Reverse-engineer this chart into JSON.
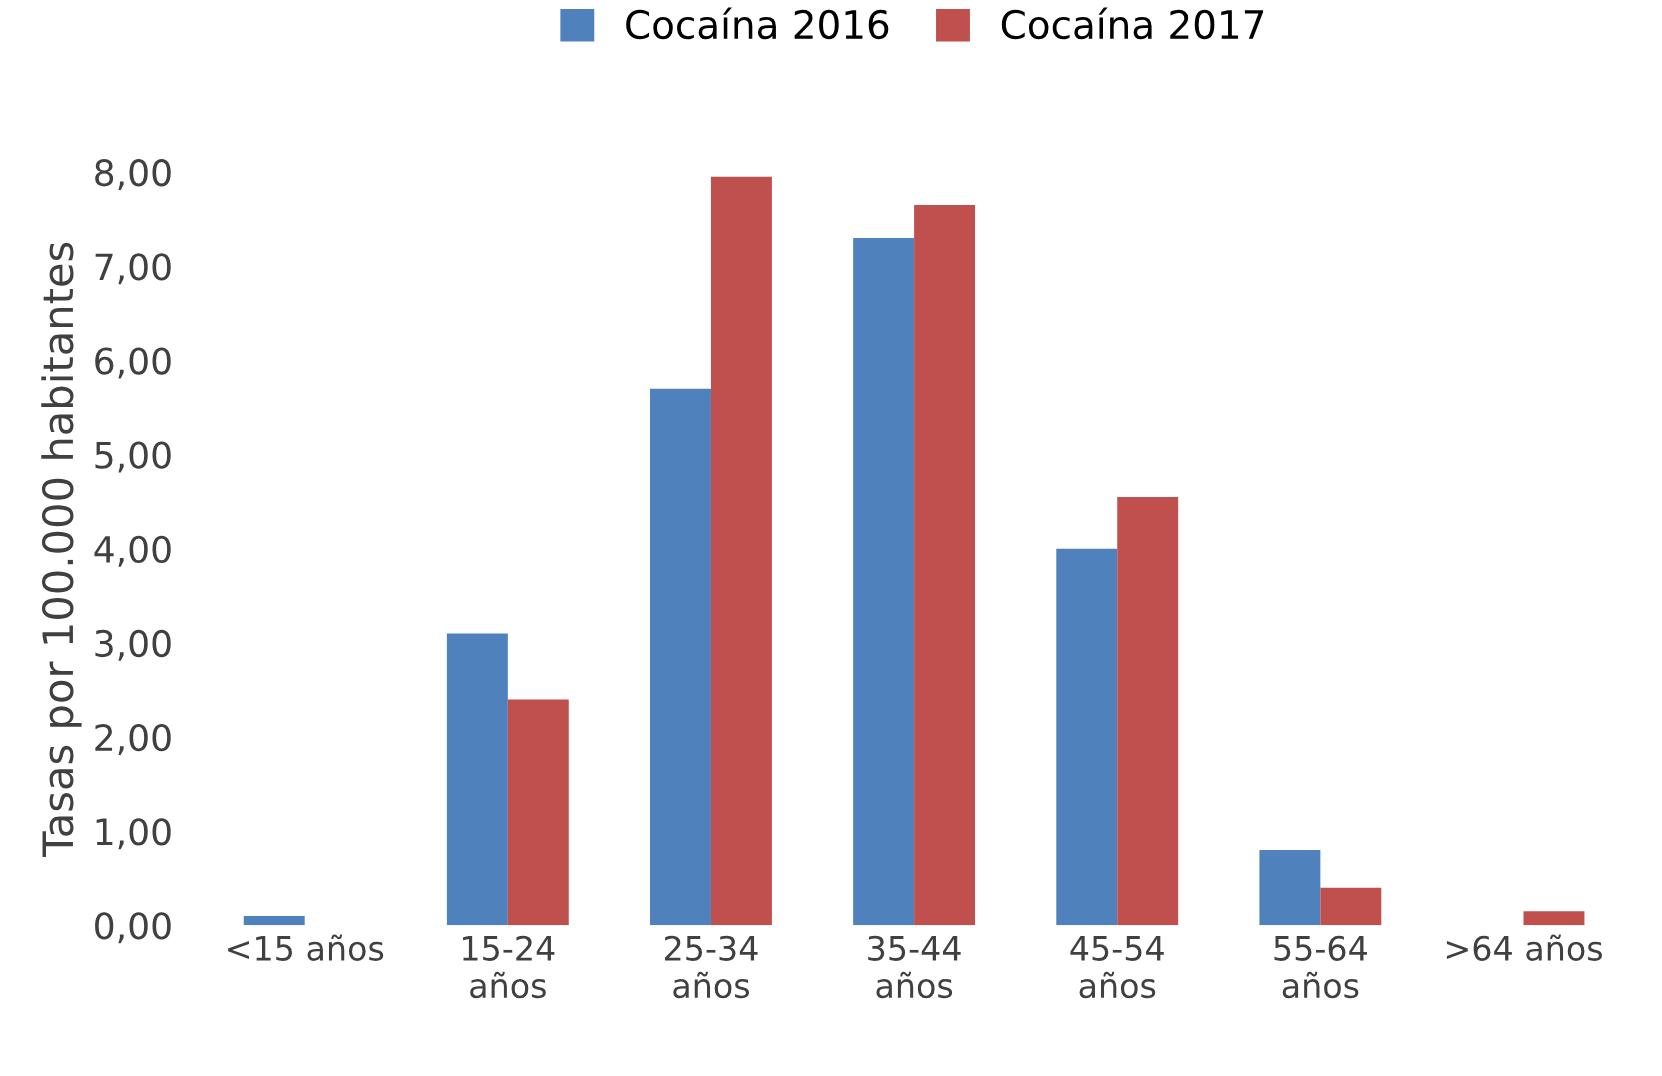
{
  "chart_data": {
    "type": "bar",
    "ylabel": "Tasas por 100.000 habitantes",
    "categories": [
      "<15 años",
      "15-24\naños",
      "25-34\naños",
      "35-44\naños",
      "45-54\naños",
      "55-64\naños",
      ">64 años"
    ],
    "series": [
      {
        "name": "Cocaína 2016",
        "color": "#4f81bd",
        "values": [
          0.1,
          3.1,
          5.7,
          7.3,
          4.0,
          0.8,
          0.0
        ]
      },
      {
        "name": "Cocaína 2017",
        "color": "#c0504d",
        "values": [
          0.0,
          2.4,
          7.95,
          7.65,
          4.55,
          0.4,
          0.15
        ]
      }
    ],
    "ylim": [
      0,
      8
    ],
    "yticks": [
      {
        "value": 0,
        "label": "0,00"
      },
      {
        "value": 1,
        "label": "1,00"
      },
      {
        "value": 2,
        "label": "2,00"
      },
      {
        "value": 3,
        "label": "3,00"
      },
      {
        "value": 4,
        "label": "4,00"
      },
      {
        "value": 5,
        "label": "5,00"
      },
      {
        "value": 6,
        "label": "6,00"
      },
      {
        "value": 7,
        "label": "7,00"
      },
      {
        "value": 8,
        "label": "8,00"
      }
    ],
    "grid": false,
    "legend": "top"
  }
}
